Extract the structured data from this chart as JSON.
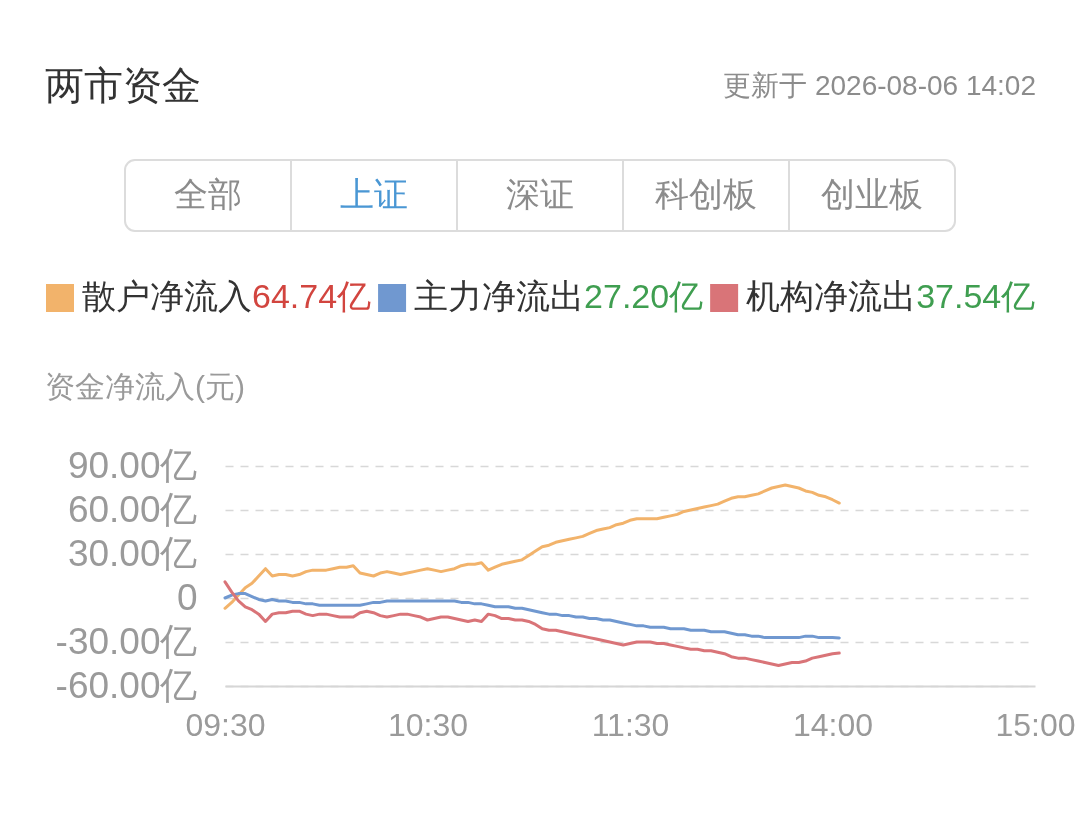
{
  "chart_data": {
    "type": "line",
    "title": "两市资金",
    "subtitle": "更新于 2026-08-06 14:02",
    "ylabel": "资金净流入(元)",
    "annotations": [
      "全部",
      "上证",
      "深证",
      "科创板",
      "创业板",
      "64.74亿",
      "27.20亿",
      "37.54亿"
    ],
    "categories": [
      "09:30",
      null,
      null,
      null,
      null,
      null,
      null,
      null,
      null,
      null,
      null,
      null,
      null,
      null,
      null,
      null,
      null,
      null,
      null,
      null,
      null,
      null,
      null,
      null,
      null,
      null,
      null,
      null,
      null,
      null,
      "10:30",
      null,
      null,
      null,
      null,
      null,
      null,
      null,
      null,
      null,
      null,
      null,
      null,
      null,
      null,
      null,
      null,
      null,
      null,
      null,
      null,
      null,
      null,
      null,
      null,
      null,
      null,
      null,
      null,
      null,
      "11:30",
      null,
      null,
      null,
      null,
      null,
      null,
      null,
      null,
      null,
      null,
      null,
      null,
      null,
      null,
      null,
      null,
      null,
      null,
      null,
      null,
      null,
      null,
      null,
      null,
      null,
      null,
      null,
      null,
      null,
      "14:00",
      null,
      null,
      null,
      null,
      null,
      null,
      null,
      null,
      null,
      null,
      null,
      null,
      null,
      null,
      null,
      null,
      null,
      null,
      null,
      null,
      null,
      null,
      null,
      null,
      null,
      null,
      null,
      null,
      null,
      "15:00"
    ],
    "series": [
      {
        "name": "散户净流入",
        "color": "#f2b36b",
        "values": [
          -7,
          -3,
          2,
          7,
          10,
          15,
          20,
          15,
          16,
          16,
          15,
          16,
          18,
          19,
          19,
          19,
          20,
          21,
          21,
          22,
          17,
          16,
          15,
          17,
          18,
          17,
          16,
          17,
          18,
          19,
          20,
          19,
          18,
          19,
          20,
          22,
          23,
          23,
          24,
          19,
          21,
          23,
          24,
          25,
          26,
          29,
          32,
          35,
          36,
          38,
          39,
          40,
          41,
          42,
          44,
          46,
          47,
          48,
          50,
          51,
          53,
          54,
          54,
          54,
          54,
          55,
          56,
          57,
          59,
          60,
          61,
          62,
          63,
          64,
          66,
          68,
          69,
          69,
          70,
          71,
          73,
          75,
          76,
          77,
          76,
          75,
          73,
          72,
          70,
          69,
          67,
          64.74,
          null,
          null,
          null,
          null,
          null,
          null,
          null,
          null,
          null,
          null,
          null,
          null,
          null,
          null,
          null,
          null,
          null,
          null,
          null,
          null,
          null,
          null,
          null,
          null,
          null,
          null,
          null,
          null,
          null
        ]
      },
      {
        "name": "主力净流出",
        "color": "#7098d0",
        "values": [
          0,
          2,
          3,
          3,
          1,
          -1,
          -2,
          -1,
          -2,
          -2,
          -3,
          -3,
          -4,
          -4,
          -5,
          -5,
          -5,
          -5,
          -5,
          -5,
          -5,
          -4,
          -3,
          -3,
          -2,
          -2,
          -2,
          -2,
          -2,
          -2,
          -2,
          -2,
          -2,
          -2,
          -2,
          -3,
          -3,
          -4,
          -4,
          -5,
          -6,
          -6,
          -6,
          -7,
          -7,
          -8,
          -9,
          -10,
          -11,
          -11,
          -12,
          -12,
          -13,
          -13,
          -14,
          -14,
          -15,
          -15,
          -16,
          -17,
          -18,
          -19,
          -19,
          -20,
          -20,
          -20,
          -21,
          -21,
          -21,
          -22,
          -22,
          -22,
          -23,
          -23,
          -23,
          -24,
          -25,
          -25,
          -26,
          -26,
          -27,
          -27,
          -27,
          -27,
          -27,
          -27,
          -26,
          -26,
          -27,
          -27,
          -27,
          -27.2,
          null,
          null,
          null,
          null,
          null,
          null,
          null,
          null,
          null,
          null,
          null,
          null,
          null,
          null,
          null,
          null,
          null,
          null,
          null,
          null,
          null,
          null,
          null,
          null,
          null,
          null,
          null,
          null,
          null
        ]
      },
      {
        "name": "机构净流出",
        "color": "#d97478",
        "values": [
          11,
          4,
          -2,
          -6,
          -8,
          -11,
          -16,
          -11,
          -10,
          -10,
          -9,
          -9,
          -11,
          -12,
          -11,
          -11,
          -12,
          -13,
          -13,
          -13,
          -10,
          -9,
          -10,
          -12,
          -13,
          -12,
          -11,
          -11,
          -12,
          -13,
          -15,
          -14,
          -13,
          -13,
          -14,
          -15,
          -16,
          -15,
          -16,
          -11,
          -12,
          -14,
          -14,
          -15,
          -15,
          -16,
          -18,
          -21,
          -22,
          -22,
          -23,
          -24,
          -25,
          -26,
          -27,
          -28,
          -29,
          -30,
          -31,
          -32,
          -31,
          -30,
          -30,
          -30,
          -31,
          -31,
          -32,
          -33,
          -34,
          -35,
          -35,
          -36,
          -36,
          -37,
          -38,
          -40,
          -41,
          -41,
          -42,
          -43,
          -44,
          -45,
          -46,
          -45,
          -44,
          -44,
          -43,
          -41,
          -40,
          -39,
          -38,
          -37.54,
          null,
          null,
          null,
          null,
          null,
          null,
          null,
          null,
          null,
          null,
          null,
          null,
          null,
          null,
          null,
          null,
          null,
          null,
          null,
          null,
          null,
          null,
          null,
          null,
          null,
          null,
          null,
          null,
          null
        ]
      }
    ],
    "ylim": [
      -60,
      90
    ],
    "yticks": [
      {
        "value": 90,
        "label": "90.00亿"
      },
      {
        "value": 60,
        "label": "60.00亿"
      },
      {
        "value": 30,
        "label": "30.00亿"
      },
      0,
      {
        "value": -30,
        "label": "-30.00亿"
      },
      {
        "value": -60,
        "label": "-60.00亿"
      }
    ],
    "grid": "y",
    "legend": "top left"
  }
}
